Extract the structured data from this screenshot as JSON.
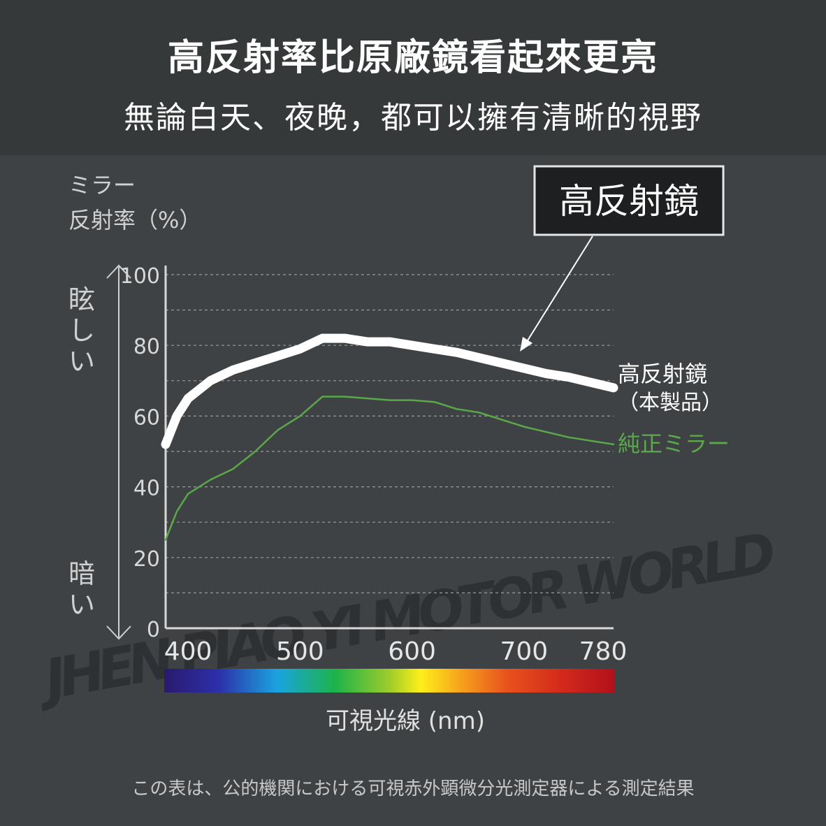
{
  "header": {
    "title": "高反射率比原廠鏡看起來更亮",
    "subtitle": "無論白天、夜晚，都可以擁有清晰的視野"
  },
  "callout_label": "高反射鏡",
  "footnote": "この表は、公的機関における可視赤外顕微分光測定器による測定結果",
  "watermark": "JHEN PIAO YI MOTOR WORLD",
  "colors": {
    "background": "#3f4244",
    "header_bg": "#35393a",
    "high_reflect": "#ffffff",
    "oem": "#5aa84a",
    "grid": "#9a9a9a"
  },
  "chart_data": {
    "type": "line",
    "ylabel_lines": [
      "ミラー",
      "反射率（%）"
    ],
    "ylabel_bright": "眩しい",
    "ylabel_dark": "暗い",
    "xlabel": "可視光線 (nm)",
    "xlim": [
      380,
      780
    ],
    "ylim": [
      0,
      100
    ],
    "xticks": [
      400,
      500,
      600,
      700,
      780
    ],
    "yticks": [
      0,
      20,
      40,
      60,
      80,
      100
    ],
    "grid": true,
    "series": [
      {
        "name": "高反射鏡",
        "name_line2": "（本製品）",
        "color": "#ffffff",
        "x": [
          380,
          390,
          400,
          420,
          440,
          460,
          480,
          500,
          520,
          540,
          560,
          580,
          600,
          620,
          640,
          660,
          680,
          700,
          720,
          740,
          760,
          780
        ],
        "y": [
          52,
          60,
          65,
          70,
          73,
          75,
          77,
          79,
          82,
          82,
          81,
          81,
          80,
          79,
          78,
          76.5,
          75,
          73.5,
          72,
          71,
          69.5,
          68
        ]
      },
      {
        "name": "純正ミラー",
        "color": "#5aa84a",
        "x": [
          380,
          390,
          400,
          420,
          440,
          460,
          480,
          500,
          520,
          540,
          560,
          580,
          600,
          620,
          640,
          660,
          680,
          700,
          720,
          740,
          760,
          780
        ],
        "y": [
          25,
          33,
          38,
          42,
          45,
          50,
          56,
          60,
          65.5,
          65.5,
          65,
          64.5,
          64.5,
          64,
          62,
          61,
          59,
          57,
          55.5,
          54,
          53,
          52
        ]
      }
    ]
  }
}
